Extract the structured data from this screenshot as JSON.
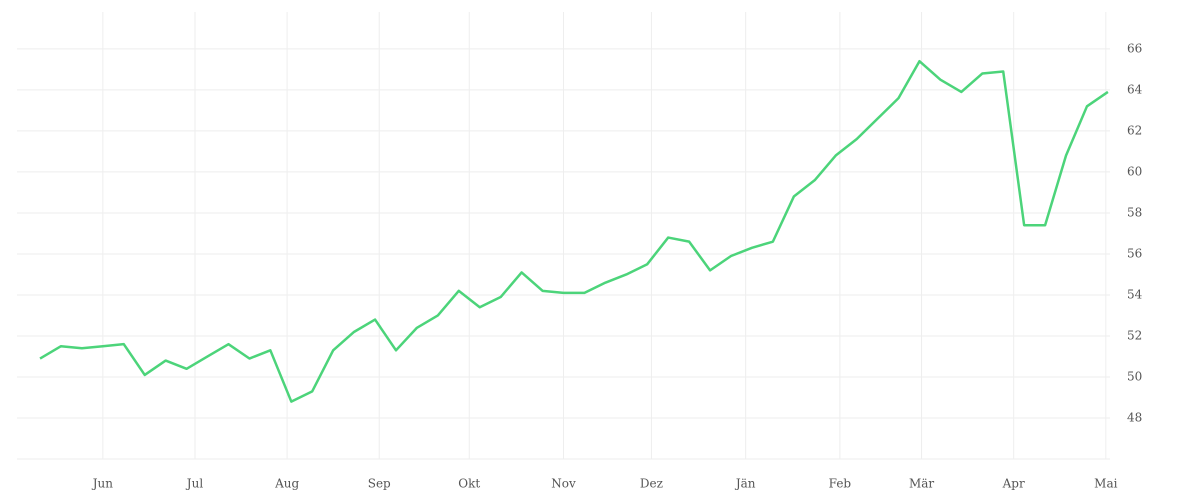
{
  "chart_data": {
    "type": "line",
    "series": [
      {
        "color": "#4cd47a",
        "values": [
          50.9,
          51.5,
          51.4,
          51.5,
          51.6,
          50.1,
          50.8,
          50.4,
          51.0,
          51.6,
          50.9,
          51.3,
          48.8,
          49.3,
          51.3,
          52.2,
          52.8,
          51.3,
          52.4,
          53.0,
          54.2,
          53.4,
          53.9,
          55.1,
          54.2,
          54.1,
          54.1,
          54.6,
          55.0,
          55.5,
          56.8,
          56.6,
          55.2,
          55.9,
          56.3,
          56.6,
          58.8,
          59.6,
          60.8,
          61.6,
          62.6,
          63.6,
          65.4,
          64.5,
          63.9,
          64.8,
          64.9,
          57.4,
          57.4,
          60.8,
          63.2,
          63.9
        ]
      }
    ],
    "xlim": [
      -1.1,
      51.1
    ],
    "xticks": [
      {
        "value": 3,
        "label": "Jun"
      },
      {
        "value": 7.4,
        "label": "Jul"
      },
      {
        "value": 11.8,
        "label": "Aug"
      },
      {
        "value": 16.2,
        "label": "Sep"
      },
      {
        "value": 20.5,
        "label": "Okt"
      },
      {
        "value": 25,
        "label": "Nov"
      },
      {
        "value": 29.2,
        "label": "Dez"
      },
      {
        "value": 33.7,
        "label": "Jän"
      },
      {
        "value": 38.2,
        "label": "Feb"
      },
      {
        "value": 42.1,
        "label": "Mär"
      },
      {
        "value": 46.5,
        "label": "Apr"
      },
      {
        "value": 50.9,
        "label": "Mai"
      }
    ],
    "ylim": [
      46,
      67.8
    ],
    "yticks": [
      48,
      50,
      52,
      54,
      56,
      58,
      60,
      62,
      64,
      66
    ],
    "grid": true
  }
}
